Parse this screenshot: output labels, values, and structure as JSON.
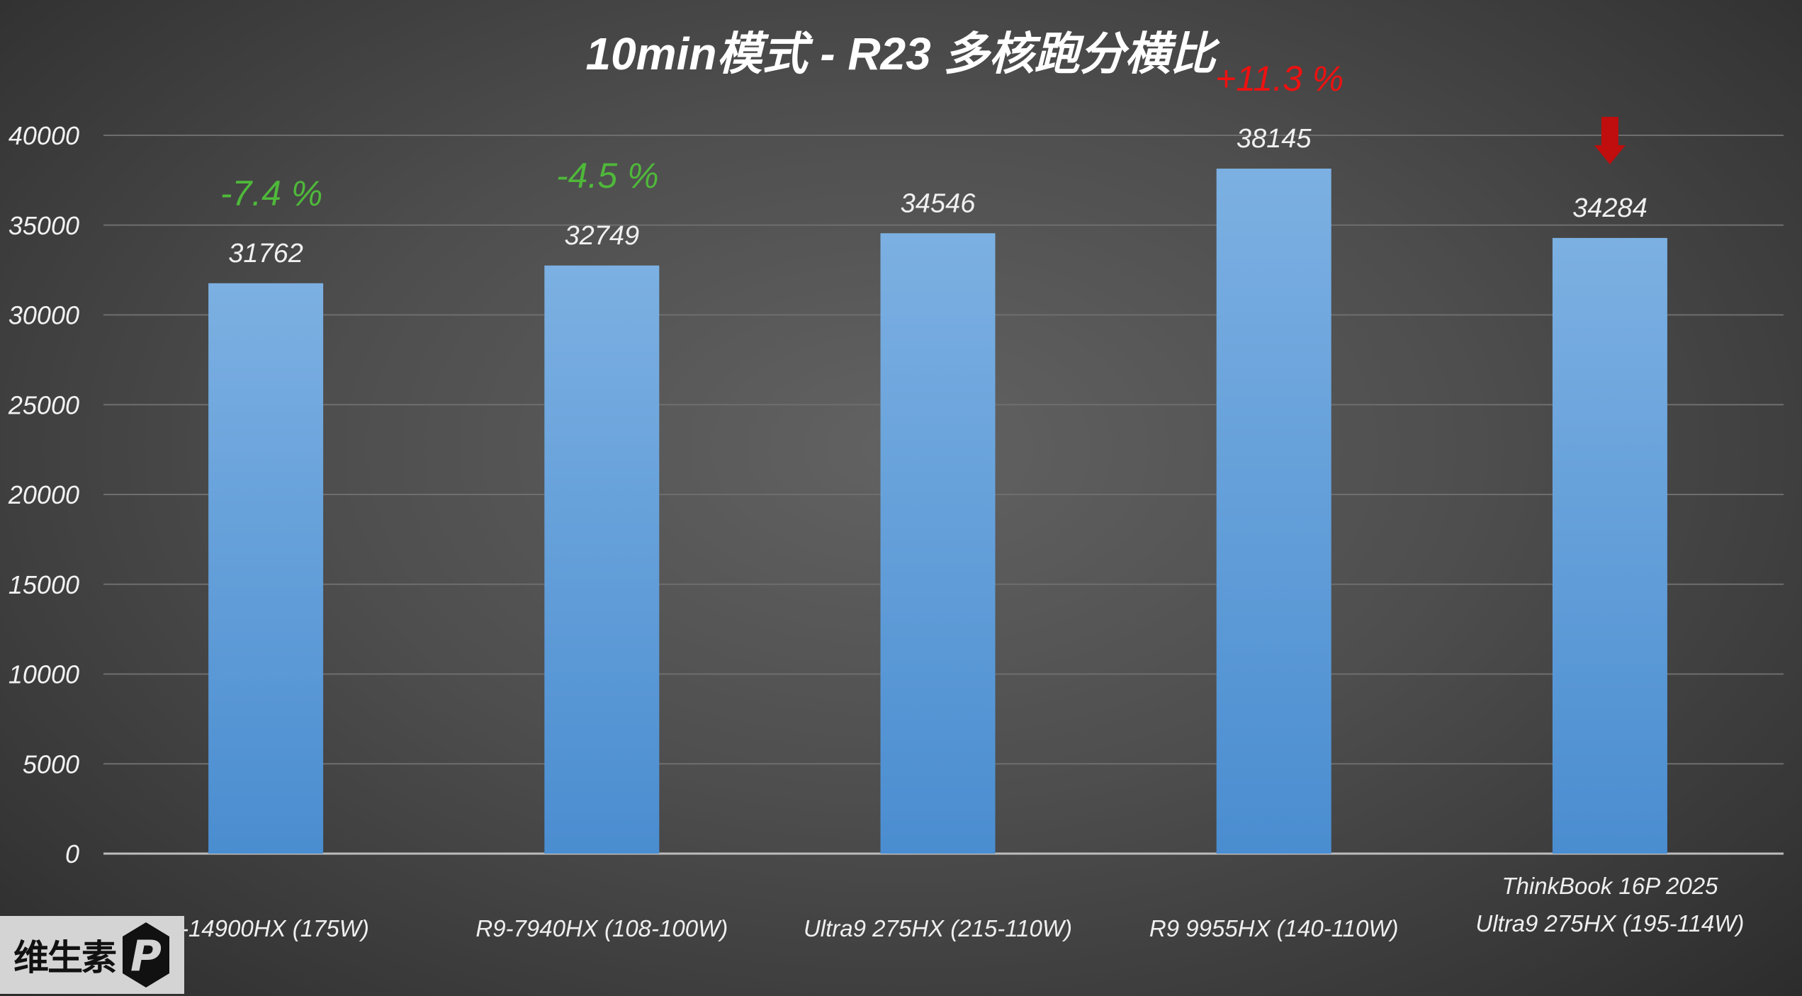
{
  "chart_data": {
    "type": "bar",
    "title": "10min模式 - R23 多核跑分横比",
    "categories": [
      [
        "i9-14900HX (175W)"
      ],
      [
        "R9-7940HX (108-100W)"
      ],
      [
        "Ultra9 275HX (215-110W)"
      ],
      [
        "R9 9955HX (140-110W)"
      ],
      [
        "ThinkBook 16P 2025",
        "Ultra9 275HX (195-114W)"
      ]
    ],
    "values": [
      31762,
      32749,
      34546,
      38145,
      34284
    ],
    "data_labels": [
      "31762",
      "32749",
      "34546",
      "38145",
      "34284"
    ],
    "annotations": [
      {
        "category_index": 0,
        "text": "-7.4 %",
        "color": "#4fb83a"
      },
      {
        "category_index": 1,
        "text": "-4.5 %",
        "color": "#4fb83a"
      },
      {
        "category_index": 3,
        "text": "+11.3 %",
        "color": "#ee1111"
      }
    ],
    "highlight_arrow": {
      "category_index": 4,
      "color": "#c00d0d",
      "icon": "down-arrow-icon"
    },
    "ylim": [
      0,
      40000
    ],
    "yticks": [
      0,
      5000,
      10000,
      15000,
      20000,
      25000,
      30000,
      35000,
      40000
    ],
    "grid": true,
    "legend": "none",
    "bar_color": "#5b9bd5"
  },
  "logo": {
    "text": "维生素",
    "mark": "P"
  }
}
